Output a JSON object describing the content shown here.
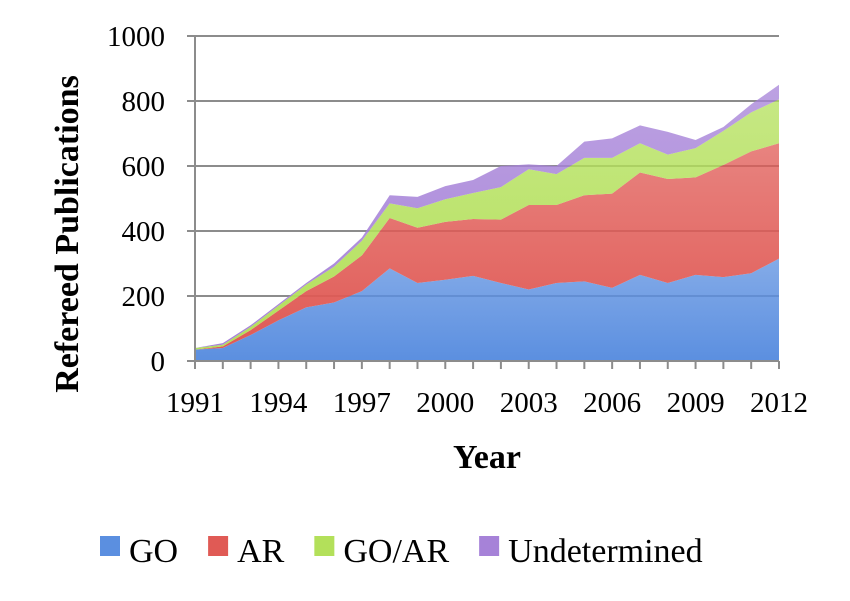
{
  "chart_data": {
    "type": "area",
    "stacked": true,
    "title": "",
    "xlabel": "Year",
    "ylabel": "Refereed Publications",
    "x": [
      1991,
      1992,
      1993,
      1994,
      1995,
      1996,
      1997,
      1998,
      1999,
      2000,
      2001,
      2002,
      2003,
      2004,
      2005,
      2006,
      2007,
      2008,
      2009,
      2010,
      2011,
      2012
    ],
    "x_ticks": [
      "1991",
      "1994",
      "1997",
      "2000",
      "2003",
      "2006",
      "2009",
      "2012"
    ],
    "y_ticks": [
      "0",
      "200",
      "400",
      "600",
      "800",
      "1000"
    ],
    "ylim": [
      0,
      1000
    ],
    "grid": "horizontal",
    "legend_position": "bottom",
    "series": [
      {
        "name": "GO",
        "color": "#5b8fe0",
        "values": [
          35,
          40,
          80,
          125,
          165,
          180,
          215,
          285,
          240,
          250,
          262,
          240,
          220,
          240,
          245,
          225,
          265,
          240,
          265,
          258,
          270,
          315
        ]
      },
      {
        "name": "AR",
        "color": "#e05a55",
        "values": [
          0,
          5,
          15,
          30,
          50,
          80,
          110,
          155,
          170,
          178,
          175,
          195,
          260,
          240,
          265,
          290,
          315,
          320,
          300,
          345,
          375,
          355
        ]
      },
      {
        "name": "GO/AR",
        "color": "#b3e05a",
        "values": [
          5,
          5,
          10,
          15,
          20,
          30,
          45,
          45,
          60,
          70,
          80,
          100,
          110,
          95,
          115,
          110,
          90,
          75,
          90,
          105,
          120,
          135
        ]
      },
      {
        "name": "Undetermined",
        "color": "#a682d8",
        "values": [
          0,
          5,
          5,
          5,
          5,
          10,
          10,
          25,
          35,
          40,
          40,
          65,
          15,
          25,
          50,
          60,
          55,
          70,
          25,
          12,
          25,
          45
        ]
      }
    ]
  }
}
